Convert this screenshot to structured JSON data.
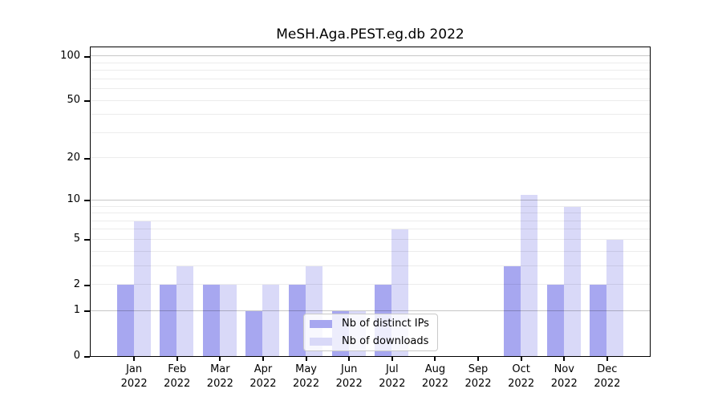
{
  "title": "MeSH.Aga.PEST.eg.db 2022",
  "legend": {
    "items": [
      {
        "label": "Nb of distinct IPs",
        "color": "#a7a7f0"
      },
      {
        "label": "Nb of downloads",
        "color": "#d9d9f8"
      }
    ]
  },
  "chart_data": {
    "type": "bar",
    "title": "MeSH.Aga.PEST.eg.db 2022",
    "categories": [
      {
        "month": "Jan",
        "year": "2022"
      },
      {
        "month": "Feb",
        "year": "2022"
      },
      {
        "month": "Mar",
        "year": "2022"
      },
      {
        "month": "Apr",
        "year": "2022"
      },
      {
        "month": "May",
        "year": "2022"
      },
      {
        "month": "Jun",
        "year": "2022"
      },
      {
        "month": "Jul",
        "year": "2022"
      },
      {
        "month": "Aug",
        "year": "2022"
      },
      {
        "month": "Sep",
        "year": "2022"
      },
      {
        "month": "Oct",
        "year": "2022"
      },
      {
        "month": "Nov",
        "year": "2022"
      },
      {
        "month": "Dec",
        "year": "2022"
      }
    ],
    "series": [
      {
        "name": "Nb of distinct IPs",
        "color": "#a7a7f0",
        "values": [
          2,
          2,
          2,
          1,
          2,
          1,
          2,
          0,
          0,
          3,
          2,
          2
        ]
      },
      {
        "name": "Nb of downloads",
        "color": "#d9d9f8",
        "values": [
          7,
          3,
          2,
          2,
          3,
          1,
          6,
          0,
          0,
          11,
          9,
          5
        ]
      }
    ],
    "xlabel": "",
    "ylabel": "",
    "yscale": "log1p",
    "ylim": [
      0,
      115
    ],
    "yticks": [
      0,
      1,
      2,
      5,
      10,
      20,
      50,
      100
    ],
    "major_gridlines": [
      1,
      10,
      100
    ],
    "minor_gridlines": [
      2,
      3,
      4,
      5,
      6,
      7,
      8,
      9,
      20,
      30,
      40,
      50,
      60,
      70,
      80,
      90
    ],
    "grid": true,
    "legend_position": "lower right inside plot"
  }
}
